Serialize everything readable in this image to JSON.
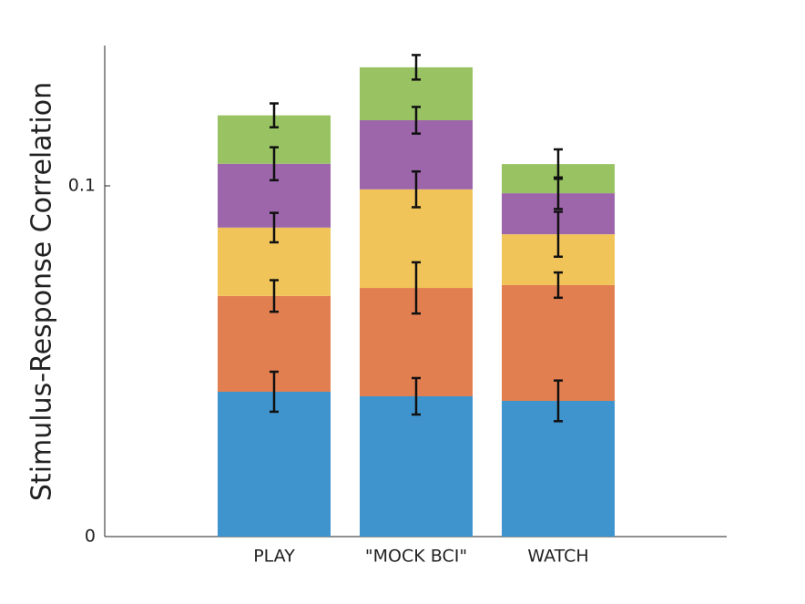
{
  "chart_data": {
    "type": "stacked_bar",
    "ylabel": "Stimulus-Response Correlation",
    "categories": [
      "PLAY",
      "\"MOCK BCI\"",
      "WATCH"
    ],
    "series": [
      {
        "color": "#3f94cd",
        "values": [
          0.0413,
          0.04,
          0.0387
        ],
        "errors": [
          0.0057,
          0.0052,
          0.0058
        ]
      },
      {
        "color": "#e27f51",
        "values": [
          0.0273,
          0.0309,
          0.033
        ],
        "errors": [
          0.0045,
          0.0073,
          0.0036
        ]
      },
      {
        "color": "#f1c45a",
        "values": [
          0.0195,
          0.0281,
          0.0145
        ],
        "errors": [
          0.0042,
          0.0051,
          0.0064
        ]
      },
      {
        "color": "#9d66ab",
        "values": [
          0.0182,
          0.0197,
          0.0117
        ],
        "errors": [
          0.0047,
          0.0038,
          0.0045
        ]
      },
      {
        "color": "#99c263",
        "values": [
          0.0138,
          0.0151,
          0.0083
        ],
        "errors": [
          0.0034,
          0.0035,
          0.0042
        ]
      }
    ],
    "ylim": [
      0,
      0.14
    ],
    "yticks": [
      0,
      0.1
    ]
  }
}
